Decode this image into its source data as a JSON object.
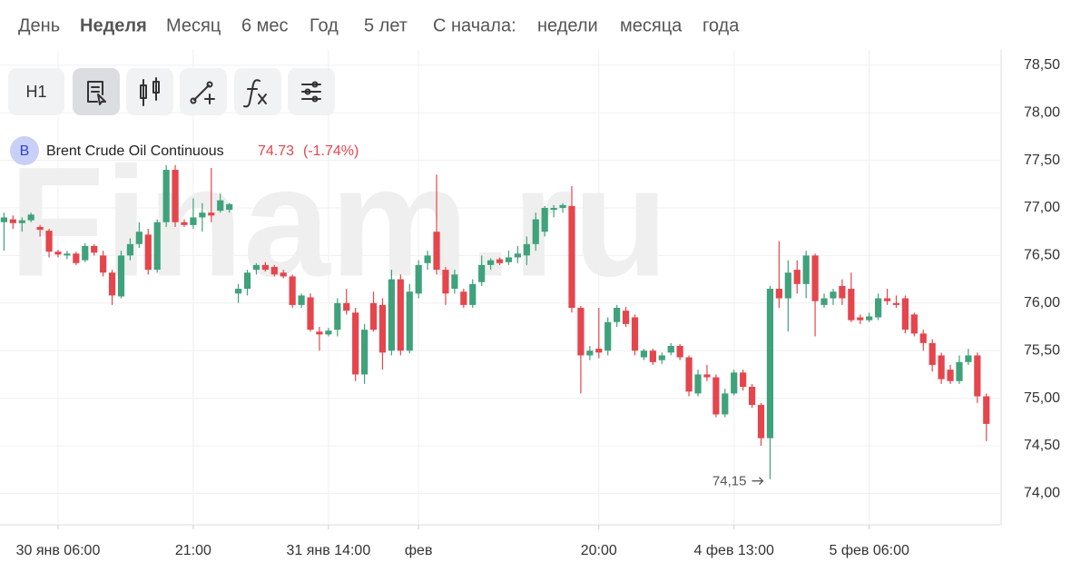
{
  "periods": {
    "items": [
      "День",
      "Неделя",
      "Месяц",
      "6 мес",
      "Год",
      "5 лет"
    ],
    "active": 1,
    "since_label": "С начала:",
    "since": [
      "недели",
      "месяца",
      "года"
    ]
  },
  "toolbar": {
    "interval": "H1"
  },
  "chart_data": {
    "type": "candlestick",
    "instrument": {
      "badge": "B",
      "name": "Brent Crude Oil Continuous",
      "last": 74.73,
      "change": "(-1.74%)"
    },
    "watermark": "Finam.ru",
    "categories": [
      null,
      null,
      null,
      null,
      null,
      null,
      "30 янв 06:00",
      null,
      null,
      null,
      null,
      null,
      null,
      null,
      null,
      null,
      null,
      null,
      null,
      null,
      null,
      "21:00",
      null,
      null,
      null,
      null,
      null,
      null,
      null,
      null,
      null,
      null,
      null,
      null,
      null,
      null,
      "31 янв 14:00",
      null,
      null,
      null,
      null,
      null,
      null,
      null,
      null,
      null,
      "фев",
      null,
      null,
      null,
      null,
      null,
      null,
      null,
      null,
      null,
      null,
      null,
      null,
      null,
      null,
      null,
      null,
      null,
      null,
      null,
      "20:00",
      null,
      null,
      null,
      null,
      null,
      null,
      null,
      null,
      null,
      null,
      null,
      null,
      null,
      null,
      "4 фев 13:00",
      null,
      null,
      null,
      null,
      null,
      null,
      null,
      null,
      null,
      null,
      null,
      null,
      null,
      null,
      "5 фев 06:00",
      null,
      null,
      null,
      null,
      null,
      null,
      null,
      null,
      null,
      null,
      null,
      null,
      null
    ],
    "open": [
      76.85,
      76.88,
      76.84,
      76.87,
      76.8,
      76.76,
      76.54,
      76.5,
      76.52,
      76.45,
      76.6,
      76.5,
      76.32,
      76.07,
      76.5,
      76.62,
      76.72,
      76.35,
      76.85,
      77.4,
      76.85,
      76.82,
      76.9,
      76.95,
      76.97,
      76.98,
      76.1,
      76.15,
      76.35,
      76.4,
      76.38,
      76.32,
      76.28,
      75.98,
      76.06,
      75.7,
      75.67,
      75.72,
      76.0,
      75.9,
      75.25,
      76.0,
      75.98,
      75.5,
      76.25,
      75.5,
      76.1,
      76.42,
      76.75,
      76.35,
      76.15,
      76.12,
      75.98,
      76.22,
      76.4,
      76.46,
      76.43,
      76.48,
      76.5,
      76.62,
      76.75,
      76.98,
      77.0,
      77.02,
      75.95,
      75.45,
      75.52,
      75.5,
      75.8,
      75.92,
      75.85,
      75.43,
      75.5,
      75.4,
      75.48,
      75.55,
      75.43,
      75.05,
      75.25,
      75.22,
      74.83,
      75.05,
      75.27,
      75.12,
      74.93,
      74.58,
      76.15,
      76.05,
      76.35,
      76.2,
      76.5,
      75.98,
      76.05,
      76.18,
      76.15,
      75.85,
      75.82,
      75.85,
      76.05,
      76.0,
      76.05,
      75.88,
      75.68,
      75.58,
      75.45,
      75.3,
      75.18,
      75.38,
      75.45,
      75.02
    ],
    "high": [
      76.95,
      76.92,
      76.9,
      76.95,
      76.82,
      76.78,
      76.56,
      76.55,
      76.54,
      76.63,
      76.62,
      76.55,
      76.35,
      76.55,
      76.68,
      76.85,
      76.78,
      76.88,
      77.45,
      77.45,
      76.88,
      77.1,
      77.05,
      77.42,
      77.15,
      77.05,
      76.2,
      76.35,
      76.42,
      76.43,
      76.4,
      76.35,
      76.3,
      76.1,
      76.1,
      75.75,
      75.74,
      76.05,
      76.15,
      75.95,
      75.78,
      76.12,
      76.05,
      76.35,
      76.3,
      76.2,
      76.45,
      76.55,
      77.35,
      76.38,
      76.35,
      76.15,
      76.25,
      76.5,
      76.47,
      76.48,
      76.55,
      76.6,
      76.7,
      76.95,
      77.02,
      77.03,
      77.05,
      77.23,
      75.97,
      75.55,
      75.95,
      75.85,
      75.98,
      75.96,
      75.88,
      75.52,
      75.52,
      75.48,
      75.58,
      75.57,
      75.45,
      75.3,
      75.35,
      75.25,
      75.1,
      75.3,
      75.3,
      75.15,
      74.95,
      76.18,
      76.65,
      76.45,
      76.45,
      76.55,
      76.52,
      76.1,
      76.15,
      76.25,
      76.32,
      75.88,
      75.9,
      76.1,
      76.15,
      76.08,
      76.08,
      75.9,
      75.72,
      75.62,
      75.48,
      75.35,
      75.45,
      75.52,
      75.48,
      75.05
    ],
    "low": [
      76.55,
      76.78,
      76.75,
      76.85,
      76.7,
      76.48,
      76.48,
      76.46,
      76.4,
      76.43,
      76.5,
      76.28,
      75.98,
      76.05,
      76.45,
      76.58,
      76.3,
      76.32,
      76.8,
      76.8,
      76.8,
      76.78,
      76.75,
      76.85,
      76.95,
      76.95,
      76.0,
      76.08,
      76.3,
      76.33,
      76.28,
      76.26,
      75.95,
      75.95,
      75.7,
      75.5,
      75.65,
      75.65,
      75.88,
      75.18,
      75.15,
      75.7,
      75.3,
      75.45,
      75.45,
      75.47,
      76.05,
      76.35,
      76.3,
      75.98,
      76.1,
      75.95,
      75.95,
      76.18,
      76.35,
      76.4,
      76.4,
      76.42,
      76.4,
      76.55,
      76.7,
      76.9,
      76.95,
      75.9,
      75.05,
      75.4,
      75.42,
      75.45,
      75.75,
      75.75,
      75.45,
      75.4,
      75.35,
      75.36,
      75.45,
      75.4,
      75.02,
      75.02,
      75.18,
      74.8,
      74.8,
      75.03,
      75.08,
      74.9,
      74.5,
      74.15,
      75.95,
      75.7,
      76.1,
      76.05,
      75.65,
      75.95,
      75.98,
      75.98,
      75.8,
      75.78,
      75.8,
      75.82,
      75.98,
      75.95,
      75.68,
      75.65,
      75.5,
      75.28,
      75.15,
      75.15,
      75.15,
      75.35,
      74.95,
      74.55
    ],
    "close": [
      76.9,
      76.84,
      76.87,
      76.93,
      76.77,
      76.54,
      76.51,
      76.52,
      76.42,
      76.6,
      76.53,
      76.32,
      76.08,
      76.5,
      76.62,
      76.75,
      76.35,
      76.85,
      77.4,
      76.85,
      76.82,
      76.9,
      76.95,
      76.92,
      77.08,
      77.04,
      76.15,
      76.32,
      76.4,
      76.35,
      76.3,
      76.28,
      75.98,
      76.08,
      75.72,
      75.67,
      75.71,
      76.0,
      75.92,
      75.25,
      75.72,
      75.72,
      75.48,
      76.25,
      75.5,
      76.12,
      76.4,
      76.5,
      76.35,
      76.1,
      76.3,
      75.98,
      76.2,
      76.4,
      76.45,
      76.42,
      76.48,
      76.52,
      76.62,
      76.88,
      77.0,
      77.0,
      77.03,
      75.95,
      75.45,
      75.5,
      75.48,
      75.8,
      75.95,
      75.78,
      75.5,
      75.5,
      75.38,
      75.45,
      75.55,
      75.43,
      75.07,
      75.25,
      75.22,
      74.83,
      75.05,
      75.27,
      75.12,
      74.93,
      74.58,
      76.15,
      76.05,
      76.32,
      76.2,
      76.5,
      76.02,
      76.05,
      76.12,
      76.05,
      75.82,
      75.82,
      75.86,
      76.05,
      76.02,
      75.98,
      75.72,
      75.68,
      75.58,
      75.35,
      75.2,
      75.18,
      75.38,
      75.45,
      75.02,
      74.73
    ],
    "up_color": "#3fa27c",
    "down_color": "#e5454c",
    "ylim": [
      73.67,
      78.66
    ],
    "yticks": [
      {
        "value": 74,
        "label": "74,00"
      },
      {
        "value": 74.5,
        "label": "74,50"
      },
      {
        "value": 75,
        "label": "75,00"
      },
      {
        "value": 75.5,
        "label": "75,50"
      },
      {
        "value": 76,
        "label": "76,00"
      },
      {
        "value": 76.5,
        "label": "76,50"
      },
      {
        "value": 77,
        "label": "77,00"
      },
      {
        "value": 77.5,
        "label": "77,50"
      },
      {
        "value": 78,
        "label": "78,00"
      },
      {
        "value": 78.5,
        "label": "78,50"
      }
    ],
    "grid": true,
    "annotation": {
      "text": "74,15"
    }
  }
}
